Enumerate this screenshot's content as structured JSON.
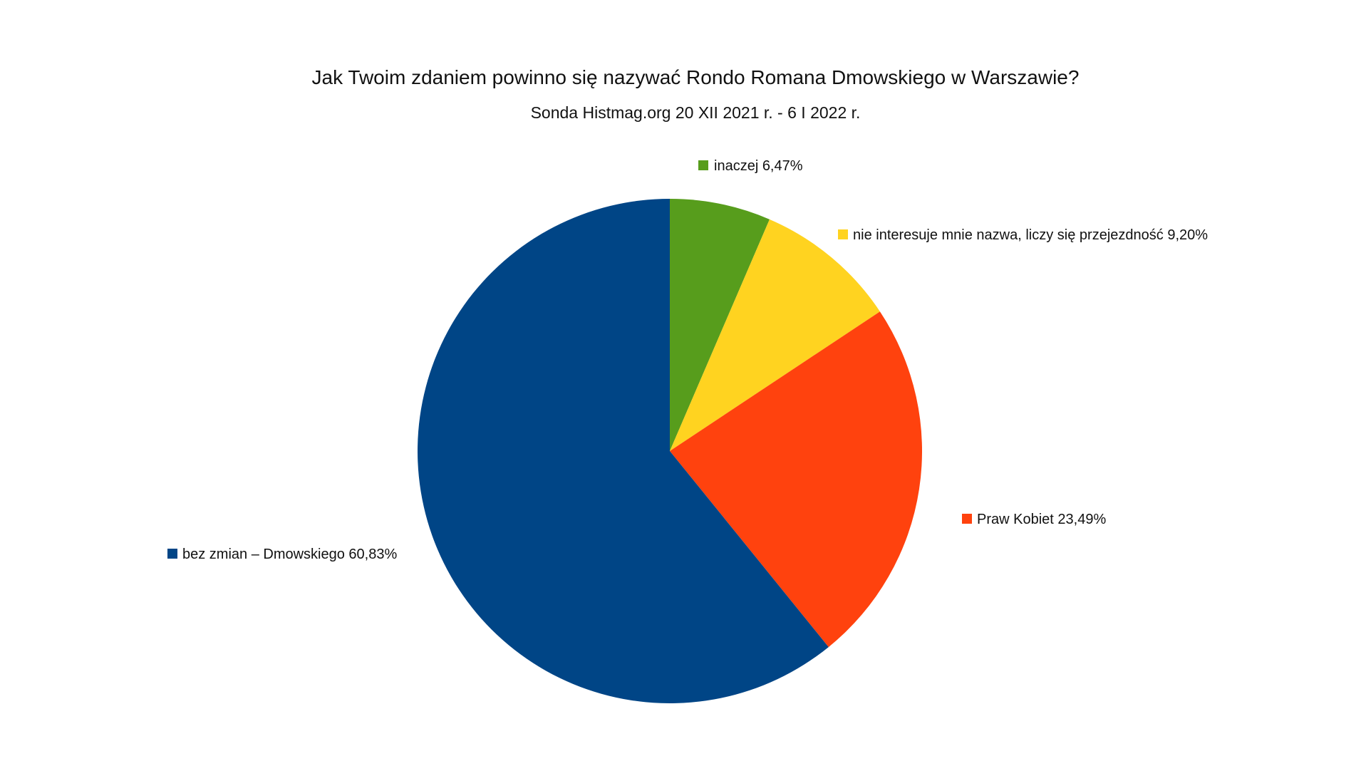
{
  "chart_data": {
    "type": "pie",
    "title": "Jak Twoim zdaniem powinno się nazywać Rondo Romana Dmowskiego w Warszawie?",
    "subtitle": "Sonda Histmag.org 20 XII 2021 r. - 6 I 2022 r.",
    "legend": "labels beside slices",
    "slices": [
      {
        "label": "inaczej 6,47%",
        "value": 6.47,
        "color": "#579d1c"
      },
      {
        "label": "nie interesuje mnie nazwa, liczy się przejezdność 9,20%",
        "value": 9.2,
        "color": "#ffd320"
      },
      {
        "label": "Praw Kobiet 23,49%",
        "value": 23.49,
        "color": "#ff420e"
      },
      {
        "label": "bez zmian – Dmowskiego 60,83%",
        "value": 60.83,
        "color": "#004586"
      }
    ]
  }
}
